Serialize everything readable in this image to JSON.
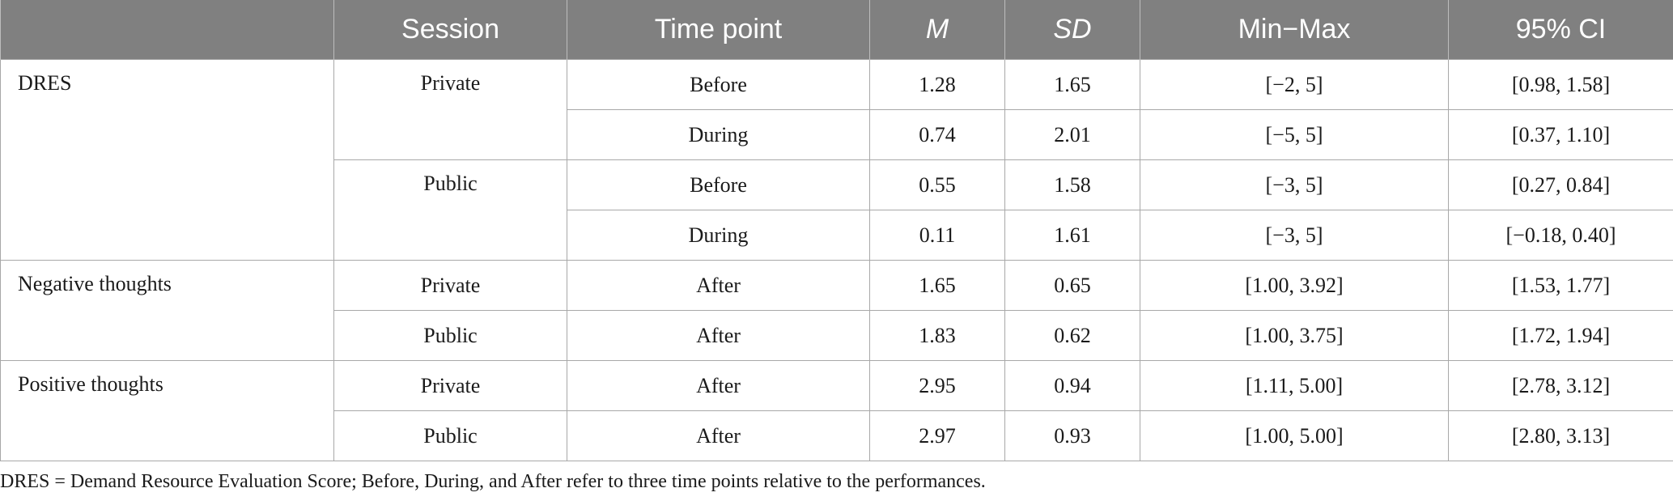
{
  "table": {
    "headers": [
      "",
      "Session",
      "Time point",
      "M",
      "SD",
      "Min−Max",
      "95% CI"
    ],
    "measures": [
      {
        "name": "DRES",
        "rows": [
          {
            "session": "Private",
            "time": "Before",
            "m": "1.28",
            "sd": "1.65",
            "minmax": "[−2, 5]",
            "ci": "[0.98, 1.58]"
          },
          {
            "session": "Private",
            "time": "During",
            "m": "0.74",
            "sd": "2.01",
            "minmax": "[−5, 5]",
            "ci": "[0.37, 1.10]"
          },
          {
            "session": "Public",
            "time": "Before",
            "m": "0.55",
            "sd": "1.58",
            "minmax": "[−3, 5]",
            "ci": "[0.27, 0.84]"
          },
          {
            "session": "Public",
            "time": "During",
            "m": "0.11",
            "sd": "1.61",
            "minmax": "[−3, 5]",
            "ci": "[−0.18, 0.40]"
          }
        ]
      },
      {
        "name": "Negative thoughts",
        "rows": [
          {
            "session": "Private",
            "time": "After",
            "m": "1.65",
            "sd": "0.65",
            "minmax": "[1.00, 3.92]",
            "ci": "[1.53, 1.77]"
          },
          {
            "session": "Public",
            "time": "After",
            "m": "1.83",
            "sd": "0.62",
            "minmax": "[1.00, 3.75]",
            "ci": "[1.72, 1.94]"
          }
        ]
      },
      {
        "name": "Positive thoughts",
        "rows": [
          {
            "session": "Private",
            "time": "After",
            "m": "2.95",
            "sd": "0.94",
            "minmax": "[1.11, 5.00]",
            "ci": "[2.78, 3.12]"
          },
          {
            "session": "Public",
            "time": "After",
            "m": "2.97",
            "sd": "0.93",
            "minmax": "[1.00, 5.00]",
            "ci": "[2.80, 3.13]"
          }
        ]
      }
    ]
  },
  "note": "DRES = Demand Resource Evaluation Score; Before, During, and After refer to three time points relative to the performances."
}
